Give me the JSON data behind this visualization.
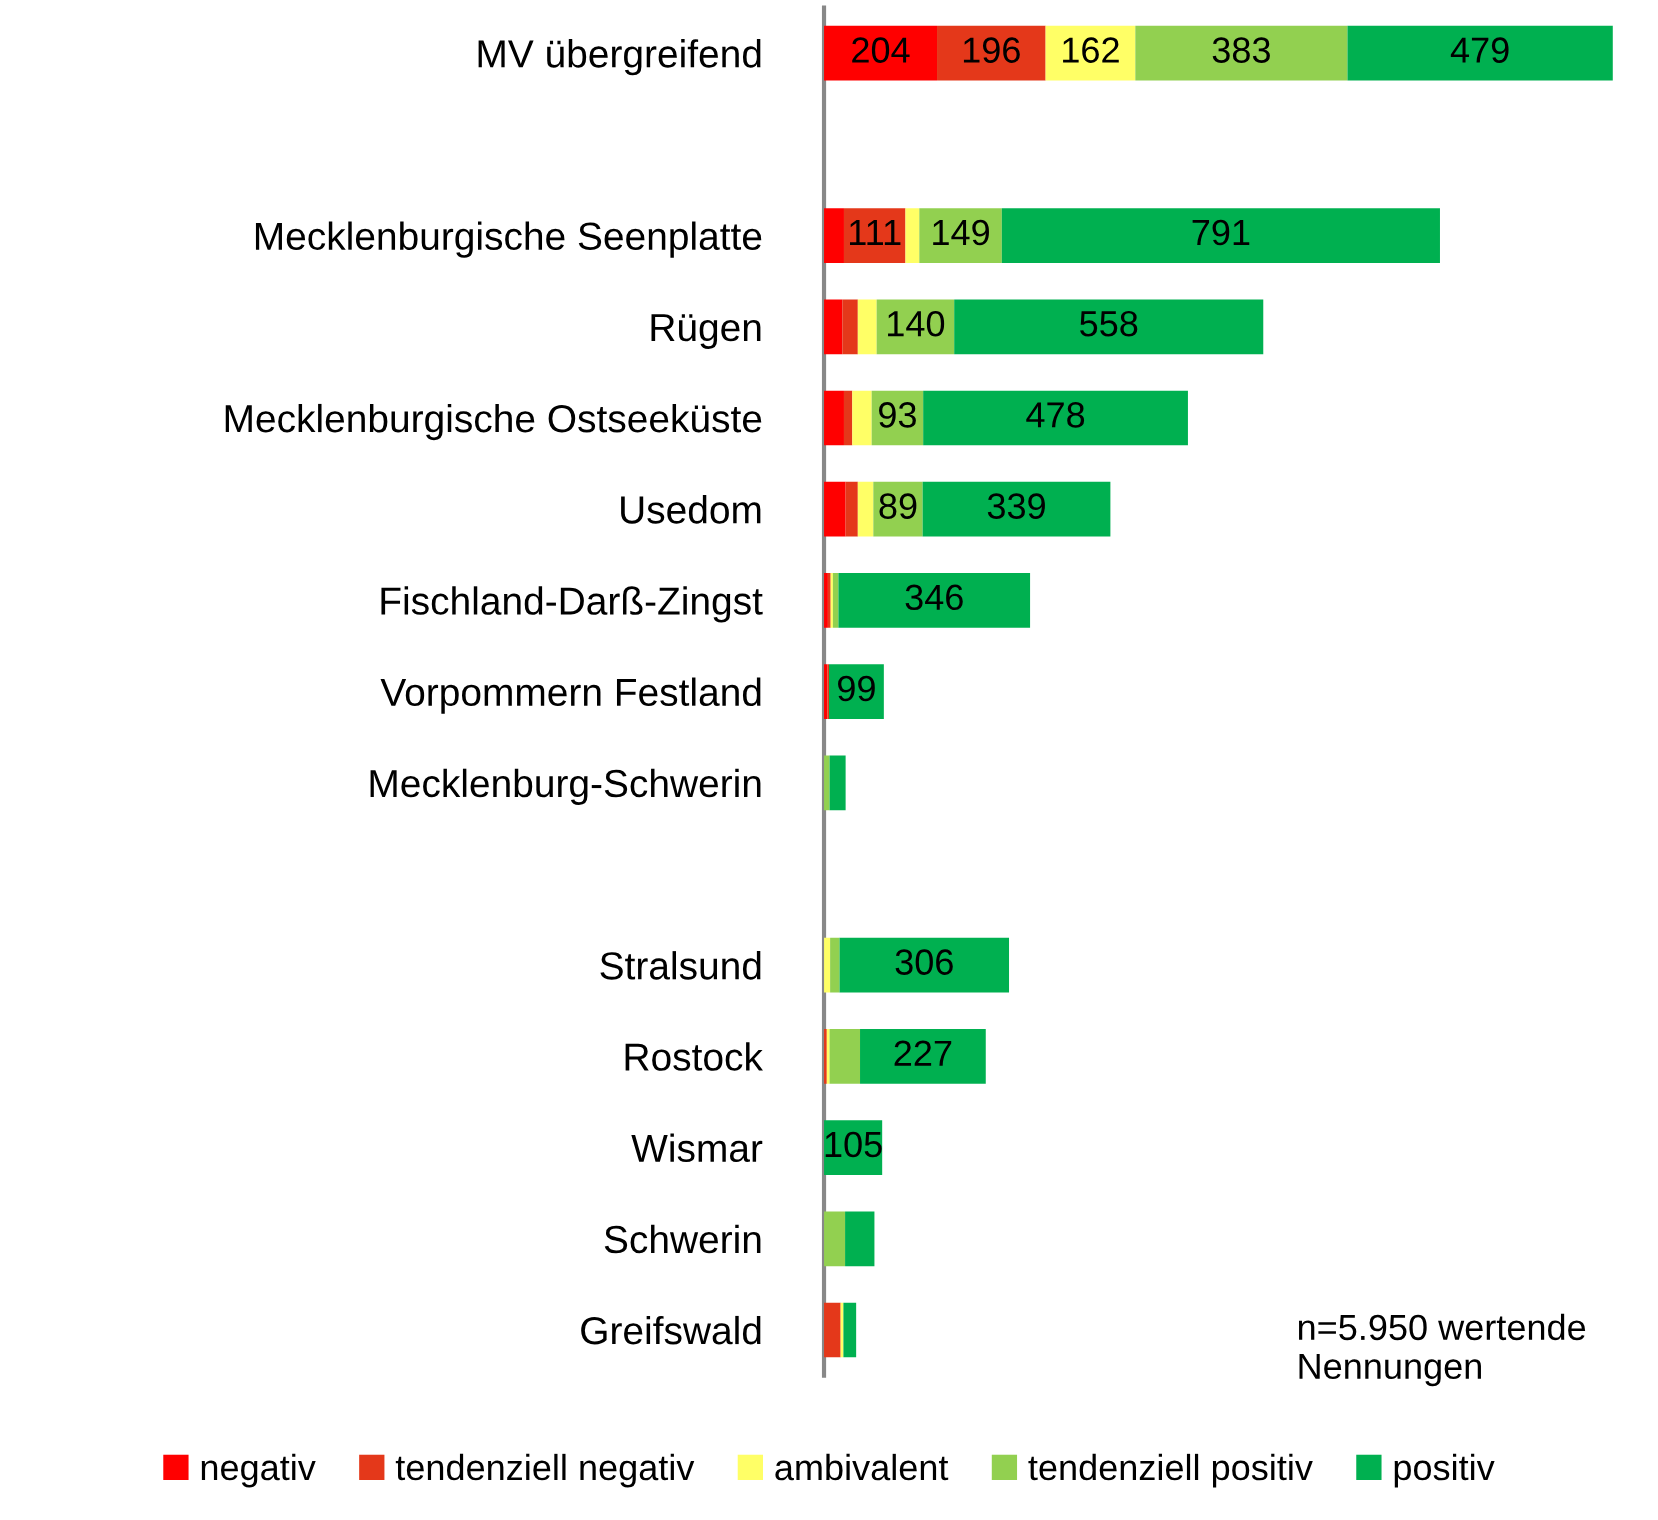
{
  "chart_data": {
    "type": "bar",
    "orientation": "horizontal",
    "stacked": true,
    "legend": "bottom",
    "grid": false,
    "categories": [
      "MV übergreifend",
      null,
      "Mecklenburgische Seenplatte",
      "Rügen",
      "Mecklenburgische Ostseeküste",
      "Usedom",
      "Fischland-Darß-Zingst",
      "Vorpommern Festland",
      "Mecklenburg-Schwerin",
      null,
      "Stralsund",
      "Rostock",
      "Wismar",
      "Schwerin",
      "Greifswald"
    ],
    "series": [
      {
        "name": "negativ",
        "color": "#ff0000",
        "values": [
          204,
          null,
          36,
          33,
          36,
          39,
          7,
          6,
          0,
          null,
          0,
          0,
          0,
          0,
          0
        ],
        "value_labels": [
          "204",
          null,
          null,
          null,
          null,
          null,
          null,
          null,
          null,
          null,
          null,
          null,
          null,
          null,
          null
        ]
      },
      {
        "name": "tendenziell negativ",
        "color": "#e4381a",
        "values": [
          196,
          null,
          111,
          28,
          15,
          22,
          5,
          3,
          0,
          null,
          0,
          5,
          0,
          0,
          30
        ],
        "value_labels": [
          "196",
          null,
          "111",
          null,
          null,
          null,
          null,
          null,
          null,
          null,
          null,
          null,
          null,
          null,
          null
        ]
      },
      {
        "name": "ambivalent",
        "color": "#ffff66",
        "values": [
          162,
          null,
          25,
          34,
          35,
          28,
          4,
          0,
          null,
          null,
          11,
          5,
          0,
          0,
          5
        ],
        "value_labels": [
          "162",
          null,
          null,
          null,
          null,
          null,
          null,
          null,
          null,
          null,
          null,
          null,
          null,
          null,
          null
        ]
      },
      {
        "name": "tendenziell positiv",
        "color": "#92d050",
        "values": [
          383,
          null,
          149,
          140,
          93,
          89,
          10,
          0,
          10,
          null,
          17,
          55,
          0,
          38,
          0
        ],
        "value_labels": [
          "383",
          null,
          "149",
          "140",
          "93",
          "89",
          null,
          null,
          null,
          null,
          null,
          null,
          null,
          null,
          null
        ]
      },
      {
        "name": "positiv",
        "color": "#00b050",
        "values": [
          479,
          null,
          791,
          558,
          478,
          339,
          346,
          99,
          29,
          null,
          306,
          227,
          105,
          53,
          23
        ],
        "value_labels": [
          "479",
          null,
          "791",
          "558",
          "478",
          "339",
          "346",
          "99",
          null,
          null,
          "306",
          "227",
          "105",
          null,
          null
        ]
      }
    ],
    "annotations": [
      "n=5.950 wertende Nennungen"
    ]
  }
}
